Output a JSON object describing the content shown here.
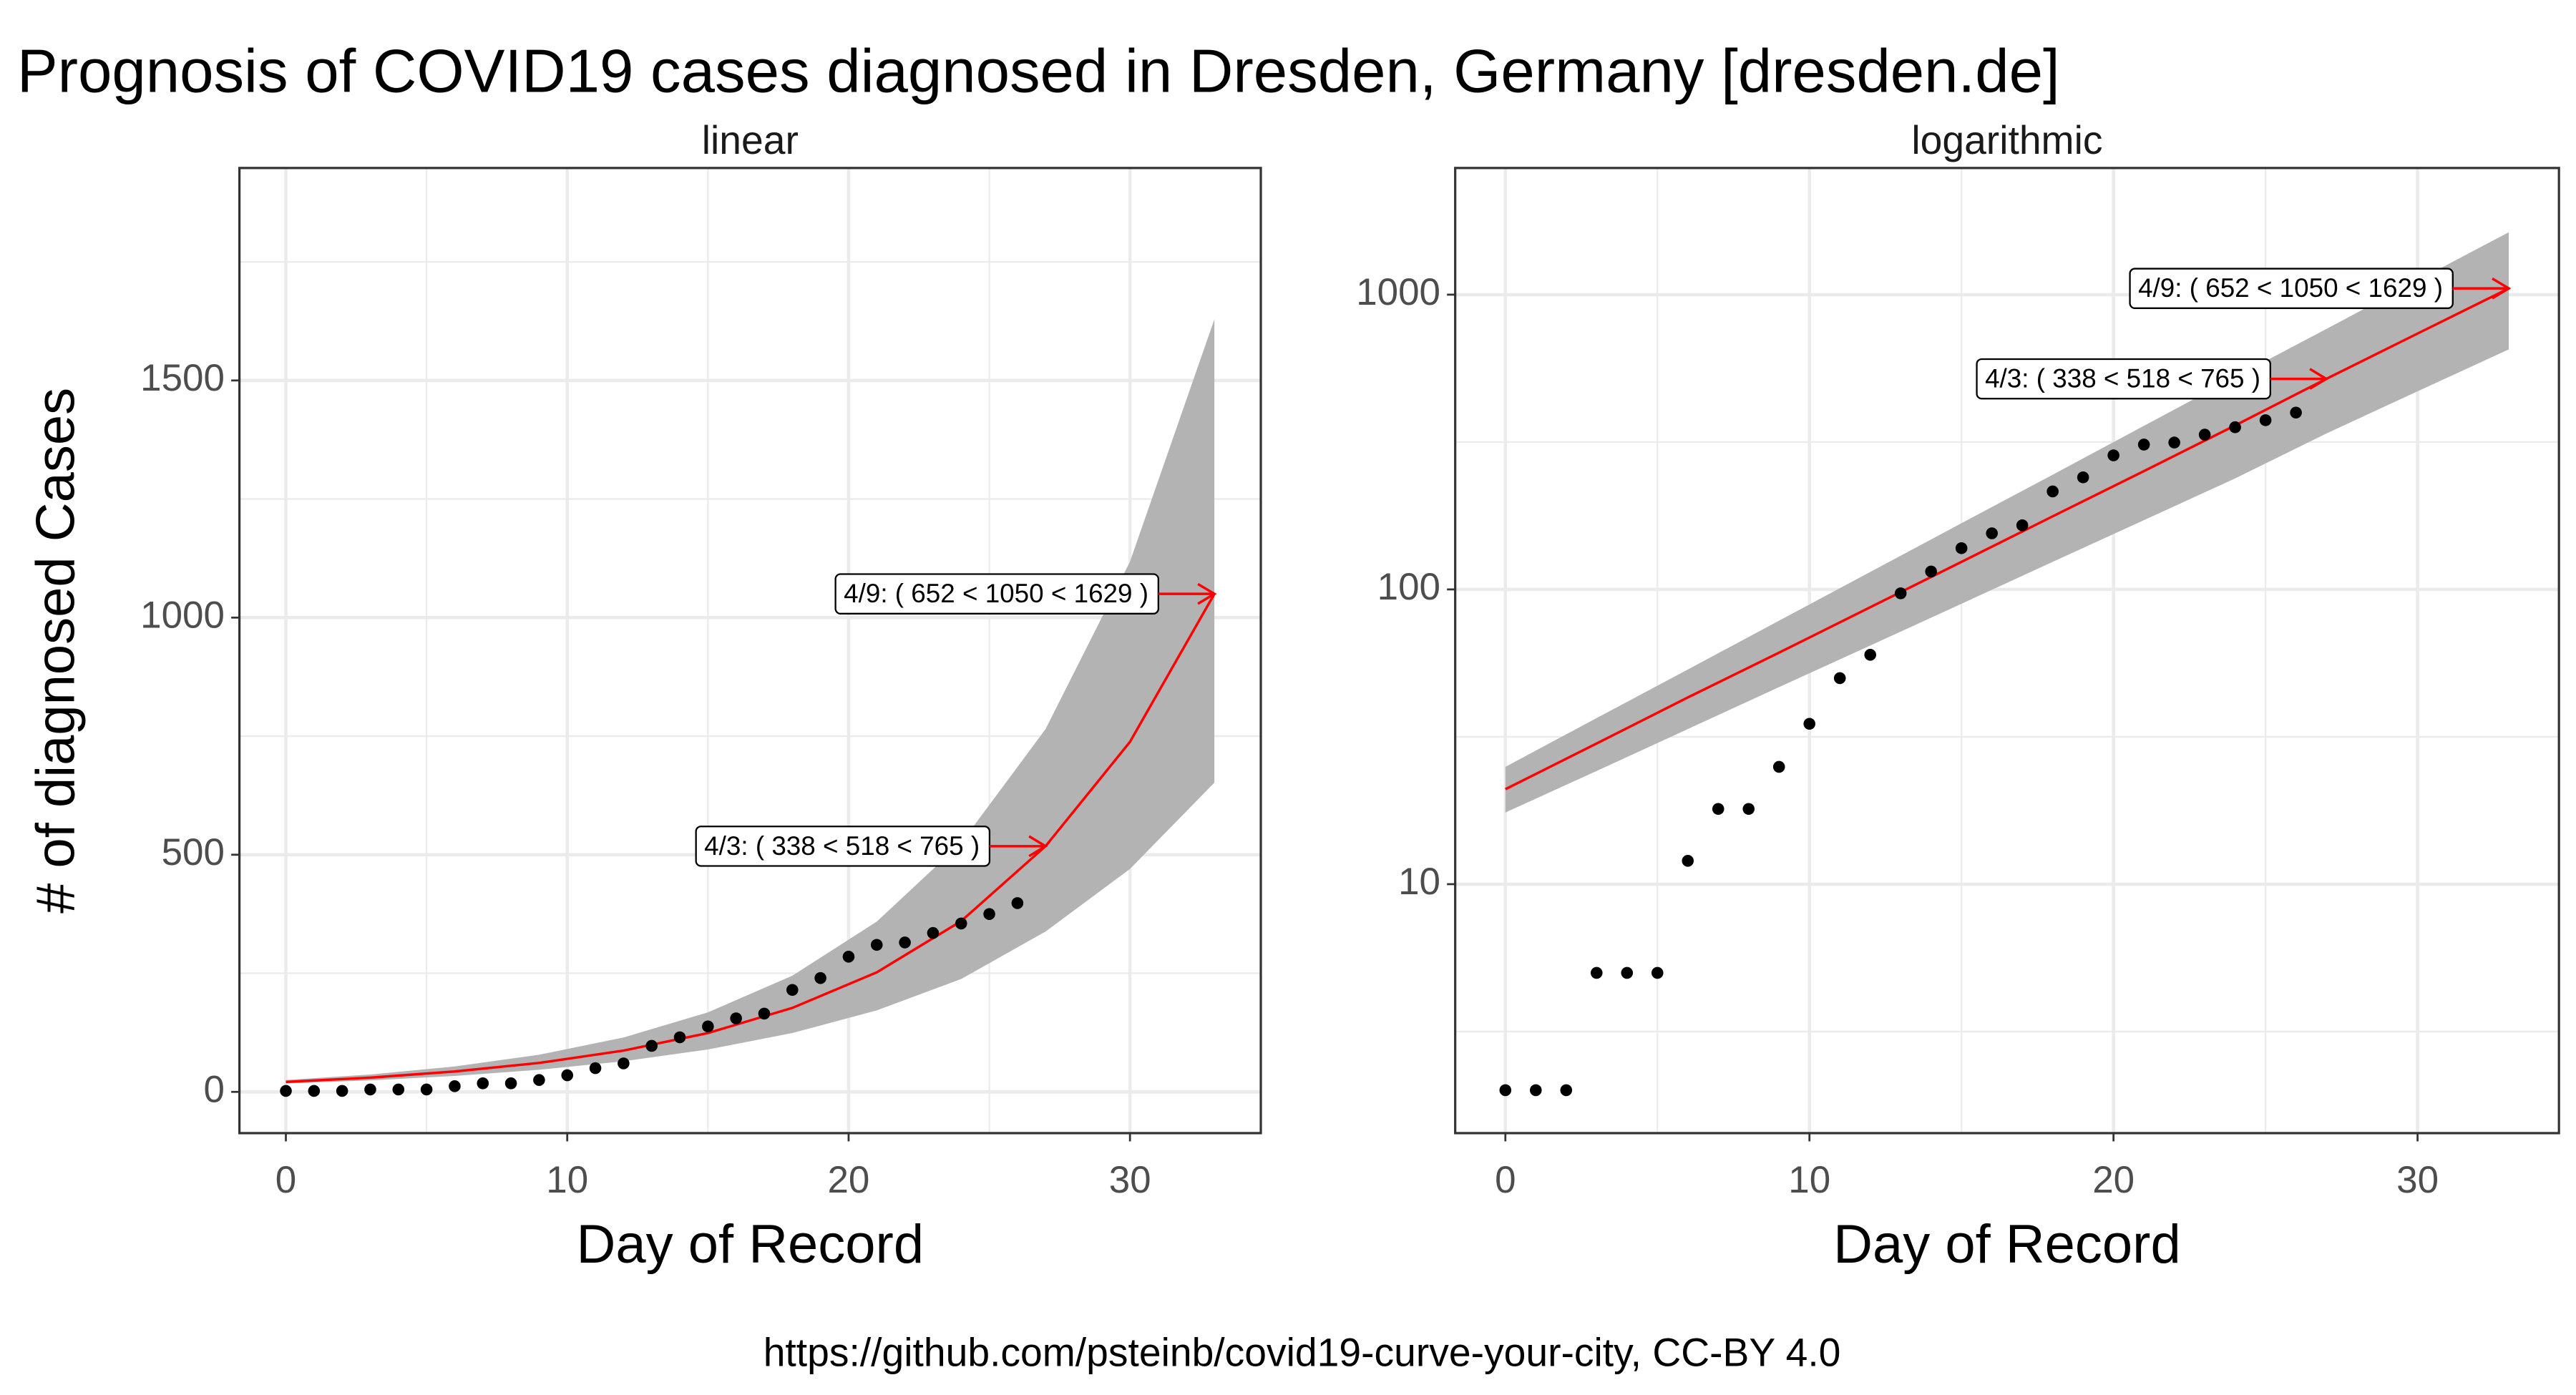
{
  "title": "Prognosis of COVID19 cases diagnosed in Dresden, Germany [dresden.de]",
  "caption": "https://github.com/psteinb/covid19-curve-your-city, CC-BY 4.0",
  "chart_data": [
    {
      "type": "scatter",
      "subtitle": "linear",
      "x_label": "Day of Record",
      "y_label": "# of diagnosed Cases",
      "log_y": false,
      "grid": true,
      "xlim": [
        -1.65,
        34.65
      ],
      "ylim": [
        -87,
        1948
      ],
      "xticks": [
        0,
        10,
        20,
        30
      ],
      "yticks": [
        0,
        500,
        1000,
        1500
      ],
      "series": [
        {
          "color": "#000000",
          "x": [
            0,
            1,
            2,
            3,
            4,
            5,
            6,
            7,
            8,
            9,
            10,
            11,
            12,
            13,
            14,
            15,
            16,
            17,
            18,
            19,
            20,
            21,
            22,
            23,
            24,
            25,
            26
          ],
          "values": [
            2,
            2,
            2,
            5,
            5,
            5,
            12,
            18,
            18,
            25,
            35,
            50,
            60,
            97,
            115,
            138,
            155,
            165,
            215,
            240,
            285,
            310,
            315,
            335,
            355,
            375,
            398
          ]
        }
      ],
      "fit": {
        "color": "#ff0000",
        "band_color": "#b3b3b3",
        "x": [
          0,
          3,
          6,
          9,
          12,
          15,
          18,
          21,
          24,
          27,
          30,
          33
        ],
        "values": [
          21,
          30,
          43,
          61,
          87,
          124,
          177,
          252,
          360,
          518,
          738,
          1050
        ],
        "lower": [
          17.5,
          24.2,
          33.6,
          46.6,
          64.5,
          89.4,
          124,
          171.7,
          238,
          338,
          470,
          652
        ],
        "upper": [
          25,
          36.6,
          53.5,
          78.3,
          114.6,
          167.7,
          245,
          359,
          525,
          765,
          1118,
          1629
        ]
      },
      "annotations": [
        {
          "text": "4/3: ( 338 < 518 < 765 )",
          "x": 27,
          "y": 518
        },
        {
          "text": "4/9: ( 652 < 1050 < 1629 )",
          "x": 33,
          "y": 1050
        }
      ]
    },
    {
      "type": "scatter",
      "subtitle": "logarithmic",
      "x_label": "Day of Record",
      "log_y": true,
      "grid": true,
      "xlim": [
        -1.65,
        34.65
      ],
      "ylim": [
        1.43,
        2690
      ],
      "xticks": [
        0,
        10,
        20,
        30
      ],
      "yticks": [
        10,
        100,
        1000
      ],
      "series": [
        {
          "color": "#000000",
          "x": [
            0,
            1,
            2,
            3,
            4,
            5,
            6,
            7,
            8,
            9,
            10,
            11,
            12,
            13,
            14,
            15,
            16,
            17,
            18,
            19,
            20,
            21,
            22,
            23,
            24,
            25,
            26
          ],
          "values": [
            2,
            2,
            2,
            5,
            5,
            5,
            12,
            18,
            18,
            25,
            35,
            50,
            60,
            97,
            115,
            138,
            155,
            165,
            215,
            240,
            285,
            310,
            315,
            335,
            355,
            375,
            398
          ]
        }
      ],
      "fit": {
        "color": "#ff0000",
        "band_color": "#b3b3b3",
        "x": [
          0,
          3,
          6,
          9,
          12,
          15,
          18,
          21,
          24,
          27,
          30,
          33
        ],
        "values": [
          21,
          30,
          43,
          61,
          87,
          124,
          177,
          252,
          360,
          518,
          738,
          1050
        ],
        "lower": [
          17.5,
          24.2,
          33.6,
          46.6,
          64.5,
          89.4,
          124,
          171.7,
          238,
          338,
          470,
          652
        ],
        "upper": [
          25,
          36.6,
          53.5,
          78.3,
          114.6,
          167.7,
          245,
          359,
          525,
          765,
          1118,
          1629
        ]
      },
      "annotations": [
        {
          "text": "4/3: ( 338 < 518 < 765 )",
          "x": 27,
          "y": 518
        },
        {
          "text": "4/9: ( 652 < 1050 < 1629 )",
          "x": 33,
          "y": 1050
        }
      ]
    }
  ]
}
